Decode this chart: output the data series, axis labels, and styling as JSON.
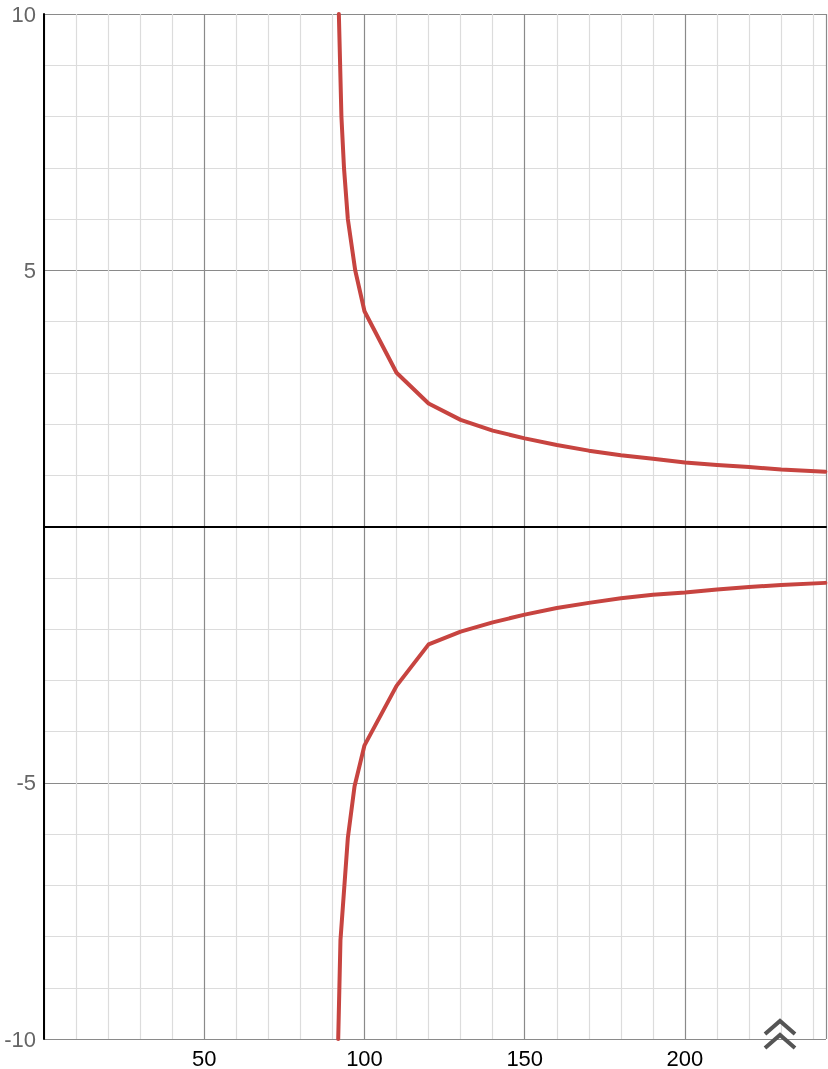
{
  "chart_data": {
    "type": "line",
    "xlim": [
      0,
      244
    ],
    "ylim": [
      -10,
      10
    ],
    "xticks": [
      50,
      100,
      150,
      200
    ],
    "yticks": [
      -10,
      -5,
      5,
      10
    ],
    "grid": true,
    "marker": "none",
    "series": [
      {
        "color": "#c74440",
        "x": [
          92.0,
          92.8,
          93.6,
          94.8,
          97.1,
          100,
          110,
          120,
          130,
          140,
          150,
          160,
          170,
          180,
          190,
          200,
          210,
          220,
          230,
          243.8
        ],
        "values": [
          10,
          8.0,
          7.0,
          6.0,
          5.0,
          4.2,
          3.0,
          2.4,
          2.08,
          1.87,
          1.72,
          1.59,
          1.48,
          1.39,
          1.32,
          1.25,
          1.2,
          1.16,
          1.11,
          1.07
        ]
      },
      {
        "color": "#c74440",
        "x": [
          91.8,
          92.5,
          94.8,
          96.9,
          100,
          110,
          120,
          130,
          140,
          150,
          160,
          170,
          180,
          190,
          200,
          210,
          220,
          230,
          243.8
        ],
        "values": [
          -10,
          -8.07,
          -6.08,
          -5.07,
          -4.27,
          -3.11,
          -2.3,
          -2.05,
          -1.87,
          -1.72,
          -1.59,
          -1.49,
          -1.4,
          -1.33,
          -1.29,
          -1.23,
          -1.18,
          -1.14,
          -1.1
        ]
      }
    ]
  }
}
